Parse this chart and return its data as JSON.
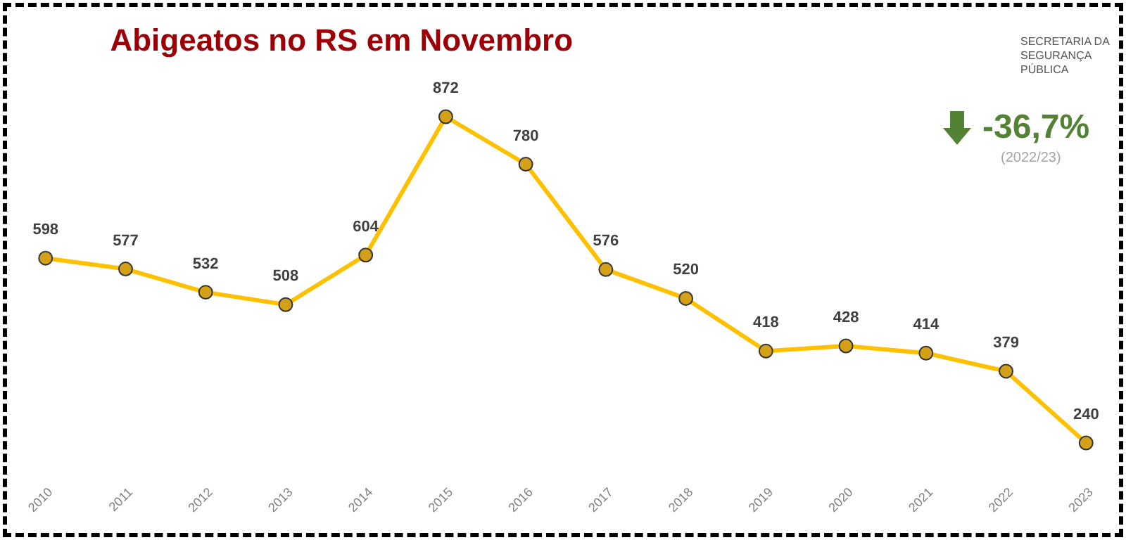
{
  "chart_data": {
    "type": "line",
    "title": "Abigeatos no RS em Novembro",
    "categories": [
      "2010",
      "2011",
      "2012",
      "2013",
      "2014",
      "2015",
      "2016",
      "2017",
      "2018",
      "2019",
      "2020",
      "2021",
      "2022",
      "2023"
    ],
    "series": [
      {
        "color": "#ffc000",
        "values": [
          598,
          577,
          532,
          508,
          604,
          872,
          780,
          576,
          520,
          418,
          428,
          414,
          379,
          240
        ]
      }
    ],
    "data_labels": true,
    "marker": "circle",
    "annotations": [
      "-36,7%",
      "(2022/23)",
      "SECRETARIA DA SEGURANÇA PÚBLICA"
    ]
  }
}
